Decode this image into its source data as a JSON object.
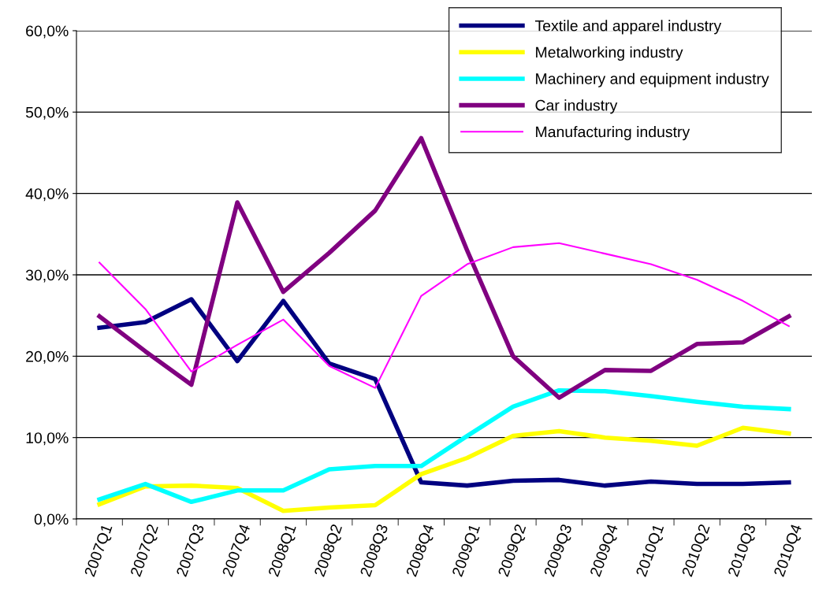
{
  "chart_data": {
    "type": "line",
    "categories": [
      "2007Q1",
      "2007Q2",
      "2007Q3",
      "2007Q4",
      "2008Q1",
      "2008Q2",
      "2008Q3",
      "2008Q4",
      "2009Q1",
      "2009Q2",
      "2009Q3",
      "2009Q4",
      "2010Q1",
      "2010Q2",
      "2010Q3",
      "2010Q4"
    ],
    "series": [
      {
        "name": "Textile and apparel industry",
        "color": "#000080",
        "values": [
          23.5,
          24.2,
          27.0,
          19.4,
          26.8,
          19.1,
          17.2,
          4.5,
          4.1,
          4.7,
          4.8,
          4.1,
          4.6,
          4.3,
          4.3,
          4.5
        ]
      },
      {
        "name": "Metalworking industry",
        "color": "#ffff00",
        "values": [
          1.8,
          4.0,
          4.1,
          3.8,
          1.0,
          1.4,
          1.7,
          5.5,
          7.5,
          10.2,
          10.8,
          10.0,
          9.6,
          9.0,
          11.2,
          10.5
        ]
      },
      {
        "name": "Machinery and equipment industry",
        "color": "#00ffff",
        "values": [
          2.4,
          4.3,
          2.1,
          3.5,
          3.5,
          6.1,
          6.5,
          6.5,
          10.2,
          13.8,
          15.8,
          15.7,
          15.1,
          14.4,
          13.8,
          13.5
        ]
      },
      {
        "name": "Car industry",
        "color": "#800080",
        "values": [
          24.9,
          20.6,
          16.5,
          38.9,
          27.9,
          32.7,
          37.9,
          46.8,
          33.0,
          20.0,
          14.9,
          18.3,
          18.2,
          21.5,
          21.7,
          24.9
        ]
      },
      {
        "name": "Manufacturing industry",
        "color": "#ff00ff",
        "values": [
          31.5,
          25.8,
          18.1,
          21.4,
          24.5,
          18.8,
          16.1,
          27.4,
          31.3,
          33.4,
          33.9,
          32.6,
          31.3,
          29.4,
          26.8,
          23.7
        ]
      }
    ],
    "ylim": [
      0,
      60
    ],
    "yticks": [
      {
        "value": 0,
        "label": "0,0%"
      },
      {
        "value": 10,
        "label": "10,0%"
      },
      {
        "value": 20,
        "label": "20,0%"
      },
      {
        "value": 30,
        "label": "30,0%"
      },
      {
        "value": 40,
        "label": "40,0%"
      },
      {
        "value": 50,
        "label": "50,0%"
      },
      {
        "value": 60,
        "label": "60,0%"
      }
    ],
    "grid": "y",
    "legend": "top right",
    "marker": "none",
    "line_style": "solid"
  }
}
